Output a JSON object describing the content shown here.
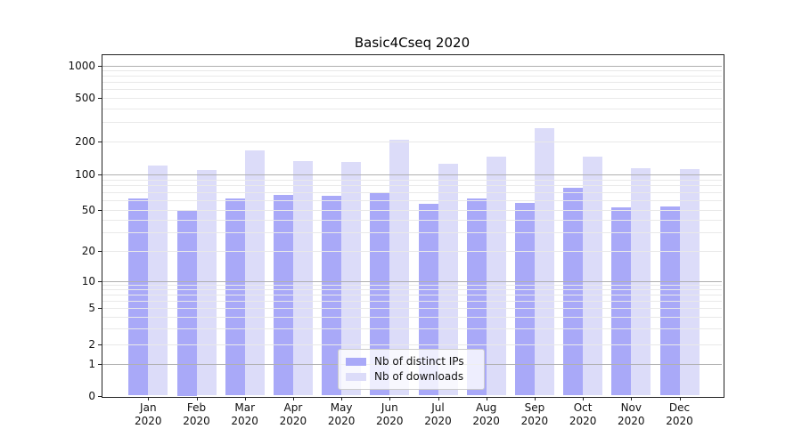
{
  "figure": {
    "title": "Basic4Cseq 2020"
  },
  "legend": {
    "items": [
      {
        "label": "Nb of distinct IPs",
        "series": "ips"
      },
      {
        "label": "Nb of downloads",
        "series": "downloads"
      }
    ]
  },
  "colors": {
    "ips_bar": "#a9a9f8",
    "downloads_bar": "#dcdcf9",
    "grid_major": "#b0b0b0",
    "grid_minor": "#e9e9e9",
    "spine": "#222222"
  },
  "chart_data": {
    "type": "bar",
    "title": "Basic4Cseq 2020",
    "categories": [
      "Jan",
      "Feb",
      "Mar",
      "Apr",
      "May",
      "Jun",
      "Jul",
      "Aug",
      "Sep",
      "Oct",
      "Nov",
      "Dec"
    ],
    "x_year_suffix": "2020",
    "series": [
      {
        "name": "Nb of distinct IPs",
        "values": [
          62,
          50,
          62,
          67,
          65,
          70,
          56,
          62,
          57,
          77,
          52,
          53
        ]
      },
      {
        "name": "Nb of downloads",
        "values": [
          120,
          110,
          165,
          132,
          130,
          207,
          125,
          144,
          267,
          144,
          114,
          112
        ]
      }
    ],
    "yscale": "symlog",
    "yticks": [
      0,
      1,
      2,
      5,
      10,
      20,
      50,
      100,
      200,
      500,
      1000
    ],
    "ylim": [
      0,
      1250
    ],
    "grid": "horizontal, major and minor, drawn over bars",
    "legend_position": "lower center"
  }
}
